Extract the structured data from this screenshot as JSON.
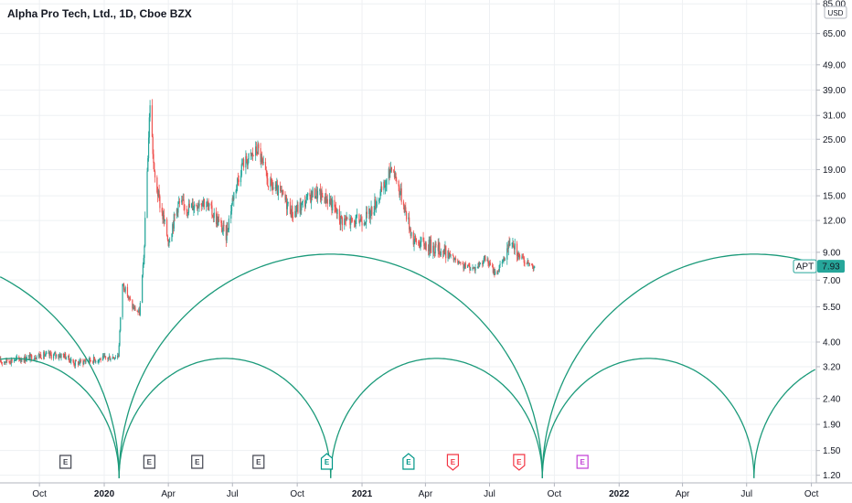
{
  "title": "Alpha Pro Tech, Ltd., 1D, Cboe BZX",
  "currency": "USD",
  "colors": {
    "grid": "#eef0f3",
    "axis": "#b2b5be",
    "up": "#26a69a",
    "down": "#ef5350",
    "arc": "#1b9a7a",
    "tag_bg": "#26a69a",
    "evt_past": "#434651",
    "evt_beat": "#009688",
    "evt_miss": "#f23645",
    "evt_future": "#c342d6"
  },
  "price_tag": {
    "ticker": "APT",
    "value": "7.93"
  },
  "events": [
    {
      "date": "2019-11-07",
      "label": "E",
      "kind": "past"
    },
    {
      "date": "2020-03-05",
      "label": "E",
      "kind": "past"
    },
    {
      "date": "2020-05-12",
      "label": "E",
      "kind": "past"
    },
    {
      "date": "2020-08-07",
      "label": "E",
      "kind": "past"
    },
    {
      "date": "2020-11-12",
      "label": "E",
      "kind": "beat"
    },
    {
      "date": "2021-03-08",
      "label": "E",
      "kind": "beat"
    },
    {
      "date": "2021-05-10",
      "label": "E",
      "kind": "miss"
    },
    {
      "date": "2021-08-12",
      "label": "E",
      "kind": "miss"
    },
    {
      "date": "2021-11-10",
      "label": "E",
      "kind": "future"
    }
  ],
  "chart_data": {
    "type": "candlestick",
    "title": "Alpha Pro Tech, Ltd., 1D, Cboe BZX",
    "y_scale": "log",
    "y_ticks": [
      "1.20",
      "1.50",
      "1.90",
      "2.40",
      "3.20",
      "4.00",
      "5.50",
      "7.00",
      "9.00",
      "12.00",
      "15.00",
      "19.00",
      "25.00",
      "31.00",
      "39.00",
      "49.00",
      "65.00",
      "85.00"
    ],
    "x_ticks": [
      {
        "date": "2019-10-01",
        "label": "Oct",
        "year": false
      },
      {
        "date": "2020-01-01",
        "label": "2020",
        "year": true
      },
      {
        "date": "2020-04-01",
        "label": "Apr",
        "year": false
      },
      {
        "date": "2020-07-01",
        "label": "Jul",
        "year": false
      },
      {
        "date": "2020-10-01",
        "label": "Oct",
        "year": false
      },
      {
        "date": "2021-01-01",
        "label": "2021",
        "year": true
      },
      {
        "date": "2021-04-01",
        "label": "Apr",
        "year": false
      },
      {
        "date": "2021-07-01",
        "label": "Jul",
        "year": false
      },
      {
        "date": "2021-10-01",
        "label": "Oct",
        "year": false
      },
      {
        "date": "2022-01-01",
        "label": "2022",
        "year": true
      },
      {
        "date": "2022-04-01",
        "label": "Apr",
        "year": false
      },
      {
        "date": "2022-07-01",
        "label": "Jul",
        "year": false
      },
      {
        "date": "2022-10-01",
        "label": "Oct",
        "year": false
      }
    ],
    "x_range": [
      "2019-08-06",
      "2022-10-08"
    ],
    "y_range": [
      1.12,
      88
    ],
    "price_path": [
      [
        "2019-08-06",
        3.35
      ],
      [
        "2019-09-10",
        3.45
      ],
      [
        "2019-10-01",
        3.55
      ],
      [
        "2019-11-05",
        3.55
      ],
      [
        "2019-11-20",
        3.3
      ],
      [
        "2019-12-10",
        3.4
      ],
      [
        "2020-01-03",
        3.45
      ],
      [
        "2020-01-21",
        3.55
      ],
      [
        "2020-01-27",
        6.8
      ],
      [
        "2020-02-10",
        5.5
      ],
      [
        "2020-02-20",
        5.2
      ],
      [
        "2020-02-26",
        8.5
      ],
      [
        "2020-03-06",
        35
      ],
      [
        "2020-03-12",
        18
      ],
      [
        "2020-03-20",
        14
      ],
      [
        "2020-04-01",
        10
      ],
      [
        "2020-04-15",
        14
      ],
      [
        "2020-05-01",
        13.5
      ],
      [
        "2020-05-20",
        14.5
      ],
      [
        "2020-06-10",
        12
      ],
      [
        "2020-06-22",
        10.5
      ],
      [
        "2020-07-02",
        15
      ],
      [
        "2020-07-15",
        20
      ],
      [
        "2020-08-01",
        22
      ],
      [
        "2020-08-06",
        23
      ],
      [
        "2020-08-20",
        17
      ],
      [
        "2020-09-10",
        15
      ],
      [
        "2020-09-25",
        12.8
      ],
      [
        "2020-10-10",
        14
      ],
      [
        "2020-10-25",
        15.5
      ],
      [
        "2020-11-15",
        14.5
      ],
      [
        "2020-12-01",
        12.2
      ],
      [
        "2020-12-20",
        11.8
      ],
      [
        "2021-01-10",
        12.5
      ],
      [
        "2021-02-05",
        17
      ],
      [
        "2021-02-12",
        20
      ],
      [
        "2021-03-01",
        14
      ],
      [
        "2021-03-15",
        10
      ],
      [
        "2021-04-10",
        9.5
      ],
      [
        "2021-05-01",
        9.0
      ],
      [
        "2021-05-20",
        8.0
      ],
      [
        "2021-06-10",
        7.8
      ],
      [
        "2021-06-25",
        8.5
      ],
      [
        "2021-07-10",
        7.4
      ],
      [
        "2021-07-22",
        8.5
      ],
      [
        "2021-08-01",
        10.5
      ],
      [
        "2021-08-12",
        8.7
      ],
      [
        "2021-08-25",
        8.1
      ],
      [
        "2021-09-05",
        7.93
      ]
    ],
    "arc_minima": [
      "2020-01-22",
      "2021-09-14",
      "2022-06-04"
    ],
    "arc_minima_values": [
      1.17,
      1.17,
      1.28
    ],
    "large_arc_peak": 8.85,
    "small_arc_peak": 3.45,
    "last_price": 7.93
  }
}
